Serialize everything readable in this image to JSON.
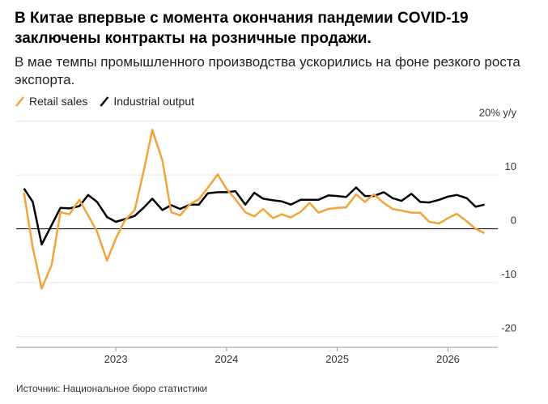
{
  "chart_data": {
    "type": "line",
    "title": "В Китае впервые с момента окончания пандемии COVID-19 заключены контракты на розничные продажи.",
    "subtitle": "В мае темпы промышленного производства ускорились на фоне резкого роста экспорта.",
    "source": "Источник: Национальное бюро статистики",
    "x": [
      2022.17,
      2022.25,
      2022.33,
      2022.42,
      2022.5,
      2022.58,
      2022.67,
      2022.75,
      2022.83,
      2022.92,
      2023,
      2023.08,
      2023.17,
      2023.25,
      2023.33,
      2023.42,
      2023.5,
      2023.58,
      2023.67,
      2023.75,
      2023.83,
      2023.92,
      2024,
      2024.08,
      2024.17,
      2024.25,
      2024.33,
      2024.42,
      2024.5,
      2024.58,
      2024.67,
      2024.75,
      2024.83,
      2024.92,
      2025,
      2025.08,
      2025.17,
      2025.25,
      2025.33,
      2025.42,
      2025.5,
      2025.58,
      2025.67,
      2025.75,
      2025.83,
      2025.92,
      2026,
      2026.08,
      2026.17,
      2026.25,
      2026.33
    ],
    "series": [
      {
        "name": "Retail sales",
        "color": "#f0a43a",
        "values": [
          6.7,
          -3.5,
          -11.1,
          -6.7,
          3.1,
          2.7,
          5.4,
          2.5,
          -0.5,
          -5.9,
          -1.8,
          1.5,
          3.5,
          10.6,
          18.4,
          12.7,
          3.1,
          2.5,
          4.6,
          5.5,
          7.6,
          10.1,
          7.4,
          5.5,
          3.1,
          2.3,
          3.7,
          2.0,
          2.7,
          2.1,
          3.2,
          4.8,
          3.0,
          3.7,
          3.9,
          4.0,
          6.4,
          5.0,
          6.4,
          4.8,
          3.7,
          3.4,
          3.0,
          3.0,
          1.3,
          1.0,
          2.0,
          2.8,
          1.4,
          0,
          -0.8
        ]
      },
      {
        "name": "Industrial output",
        "color": "#000000",
        "values": [
          7.5,
          5.0,
          -2.9,
          0.7,
          3.9,
          3.8,
          4.2,
          6.3,
          5.0,
          2.2,
          1.3,
          1.8,
          2.4,
          3.9,
          5.6,
          3.5,
          4.4,
          3.7,
          4.5,
          4.5,
          6.6,
          6.8,
          6.8,
          7.0,
          4.5,
          6.7,
          5.6,
          5.3,
          5.1,
          4.5,
          5.4,
          5.4,
          5.4,
          6.2,
          6.1,
          5.9,
          7.7,
          6.1,
          6.1,
          6.8,
          5.7,
          5.2,
          6.5,
          5.0,
          4.9,
          5.4,
          6.0,
          6.3,
          5.7,
          4.1,
          4.5
        ]
      }
    ],
    "xlim": [
      2022.1,
      2026.45
    ],
    "xticks": [
      2023,
      2024,
      2025,
      2026
    ],
    "ylim": [
      -22,
      21
    ],
    "yticks": [
      {
        "value": 20,
        "label": "20% y/y"
      },
      10,
      0,
      -10,
      -20
    ],
    "grid": true
  }
}
